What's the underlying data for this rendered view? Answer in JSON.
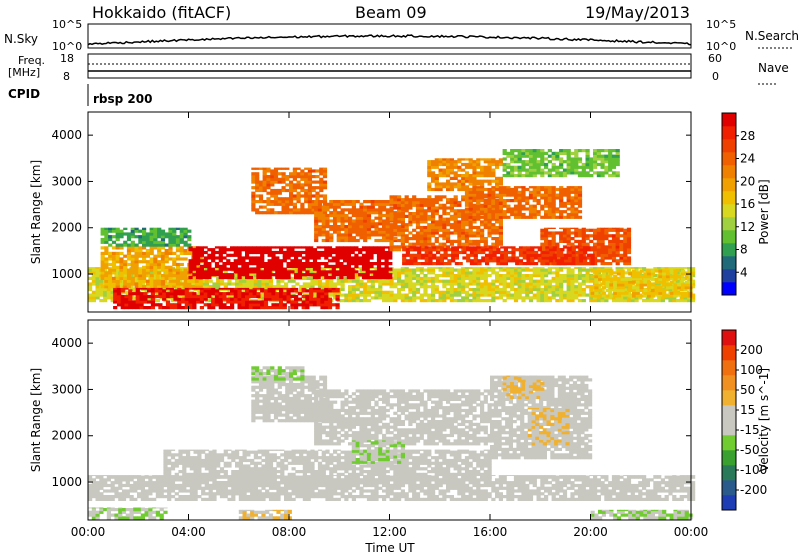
{
  "header": {
    "station": "Hokkaido (fitACF)",
    "beam": "Beam 09",
    "date": "19/May/2013"
  },
  "strips": {
    "nsky_label": "N.Sky",
    "nsearch_label": "N.Search",
    "nsky_ticks": [
      "10^5",
      "10^0"
    ],
    "nsearch_ticks": [
      "10^5",
      "10^0"
    ],
    "freq_label_line1": "Freq.",
    "freq_label_line2": "[MHz]",
    "freq_ticks": [
      "18",
      "8"
    ],
    "nave_label": "Nave",
    "nave_ticks": [
      "60",
      "0"
    ],
    "cpid_label": "CPID",
    "cpid_value": "rbsp 200"
  },
  "colorbars": {
    "power": {
      "label": "Power [dB]",
      "ticks": [
        "28",
        "24",
        "20",
        "16",
        "12",
        "8",
        "4"
      ],
      "colors": [
        "#0000ff",
        "#2040a0",
        "#206a7a",
        "#30a050",
        "#60c030",
        "#a0d040",
        "#d8d820",
        "#f0c000",
        "#f0a000",
        "#f08000",
        "#f06000",
        "#f04000",
        "#f02000",
        "#e00000"
      ]
    },
    "velocity": {
      "label": "Velocity [m s^-1]",
      "ticks": [
        "200",
        "100",
        "50",
        "15",
        "-15",
        "-50",
        "-100",
        "-200"
      ],
      "colors": [
        "#1e3cb4",
        "#2a5a8c",
        "#2a7a5a",
        "#3aa030",
        "#70cc30",
        "#c8c8c0",
        "#c8c8c0",
        "#f0b030",
        "#f09020",
        "#f07010",
        "#f04000",
        "#e01010"
      ]
    }
  },
  "chart_data": [
    {
      "type": "heatmap",
      "title": "Power",
      "xlabel": "",
      "ylabel": "Slant Range [km]",
      "x_ticks": [
        "00:00",
        "04:00",
        "08:00",
        "12:00",
        "16:00",
        "20:00",
        "00:00"
      ],
      "y_ticks": [
        "1000",
        "2000",
        "3000",
        "4000"
      ],
      "xlim": [
        0,
        24
      ],
      "ylim": [
        180,
        4500
      ],
      "colorbar_range": [
        0,
        30
      ],
      "regions": [
        {
          "x0": 0.0,
          "x1": 24.0,
          "y0": 400,
          "y1": 1150,
          "level": 14
        },
        {
          "x0": 0.5,
          "x1": 4.5,
          "y0": 700,
          "y1": 1600,
          "level": 18
        },
        {
          "x0": 1.0,
          "x1": 10.0,
          "y0": 250,
          "y1": 700,
          "level": 28
        },
        {
          "x0": 4.0,
          "x1": 12.0,
          "y0": 900,
          "y1": 1600,
          "level": 30
        },
        {
          "x0": 6.5,
          "x1": 9.5,
          "y0": 2300,
          "y1": 3300,
          "level": 22
        },
        {
          "x0": 9.0,
          "x1": 12.5,
          "y0": 1700,
          "y1": 2600,
          "level": 22
        },
        {
          "x0": 12.0,
          "x1": 16.5,
          "y0": 1500,
          "y1": 2700,
          "level": 22
        },
        {
          "x0": 13.5,
          "x1": 16.5,
          "y0": 2800,
          "y1": 3500,
          "level": 20
        },
        {
          "x0": 15.0,
          "x1": 19.5,
          "y0": 2200,
          "y1": 2900,
          "level": 22
        },
        {
          "x0": 18.0,
          "x1": 21.5,
          "y0": 1200,
          "y1": 2000,
          "level": 24
        },
        {
          "x0": 12.5,
          "x1": 20.0,
          "y0": 1200,
          "y1": 1600,
          "level": 26
        },
        {
          "x0": 20.0,
          "x1": 24.0,
          "y0": 500,
          "y1": 1100,
          "level": 16
        },
        {
          "x0": 0.5,
          "x1": 4.0,
          "y0": 1600,
          "y1": 2000,
          "level": 8
        },
        {
          "x0": 16.5,
          "x1": 21.0,
          "y0": 3100,
          "y1": 3700,
          "level": 10
        }
      ]
    },
    {
      "type": "heatmap",
      "title": "Velocity",
      "xlabel": "Time UT",
      "ylabel": "Slant Range [km]",
      "x_ticks": [
        "00:00",
        "04:00",
        "08:00",
        "12:00",
        "16:00",
        "20:00",
        "00:00"
      ],
      "y_ticks": [
        "1000",
        "2000",
        "3000",
        "4000"
      ],
      "xlim": [
        0,
        24
      ],
      "ylim": [
        180,
        4500
      ],
      "colorbar_range": [
        -250,
        250
      ],
      "regions": [
        {
          "x0": 0.0,
          "x1": 24.0,
          "y0": 600,
          "y1": 1150,
          "level": 0
        },
        {
          "x0": 3.0,
          "x1": 16.0,
          "y0": 900,
          "y1": 1700,
          "level": 0
        },
        {
          "x0": 6.5,
          "x1": 9.5,
          "y0": 2300,
          "y1": 3300,
          "level": 0
        },
        {
          "x0": 9.0,
          "x1": 16.0,
          "y0": 1800,
          "y1": 3000,
          "level": 0
        },
        {
          "x0": 16.0,
          "x1": 20.0,
          "y0": 1500,
          "y1": 3300,
          "level": 0
        },
        {
          "x0": 17.5,
          "x1": 19.0,
          "y0": 1800,
          "y1": 2600,
          "level": 40
        },
        {
          "x0": 16.5,
          "x1": 18.0,
          "y0": 2800,
          "y1": 3300,
          "level": 40
        },
        {
          "x0": 6.5,
          "x1": 8.5,
          "y0": 3200,
          "y1": 3500,
          "level": -40
        },
        {
          "x0": 0.0,
          "x1": 3.0,
          "y0": 200,
          "y1": 450,
          "level": -40
        },
        {
          "x0": 10.5,
          "x1": 12.5,
          "y0": 1400,
          "y1": 1900,
          "level": -40
        },
        {
          "x0": 20.0,
          "x1": 24.0,
          "y0": 200,
          "y1": 400,
          "level": -40
        },
        {
          "x0": 6.0,
          "x1": 8.0,
          "y0": 200,
          "y1": 400,
          "level": 40
        }
      ]
    }
  ]
}
